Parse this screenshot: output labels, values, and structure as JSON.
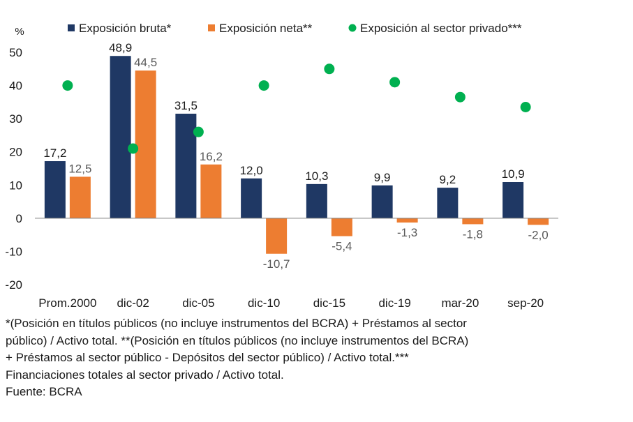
{
  "chart_data": {
    "type": "bar",
    "title": "",
    "ylabel": "%",
    "xlabel": "",
    "ylim": [
      -20,
      50
    ],
    "yticks": [
      -20,
      -10,
      0,
      10,
      20,
      30,
      40,
      50
    ],
    "categories": [
      "Prom.2000",
      "dic-02",
      "dic-05",
      "dic-10",
      "dic-15",
      "dic-19",
      "mar-20",
      "sep-20"
    ],
    "series": [
      {
        "name": "Exposición bruta*",
        "kind": "bar",
        "color": "#1f3864",
        "values": [
          17.2,
          48.9,
          31.5,
          12.0,
          10.3,
          9.9,
          9.2,
          10.9
        ],
        "labels": [
          "17,2",
          "48,9",
          "31,5",
          "12,0",
          "10,3",
          "9,9",
          "9,2",
          "10,9"
        ]
      },
      {
        "name": "Exposición neta**",
        "kind": "bar",
        "color": "#ed7d31",
        "values": [
          12.5,
          44.5,
          16.2,
          -10.7,
          -5.4,
          -1.3,
          -1.8,
          -2.0
        ],
        "labels": [
          "12,5",
          "44,5",
          "16,2",
          "-10,7",
          "-5,4",
          "-1,3",
          "-1,8",
          "-2,0"
        ]
      },
      {
        "name": "Exposición al sector privado***",
        "kind": "dot",
        "color": "#00b050",
        "values": [
          40.0,
          21.0,
          26.0,
          40.0,
          45.0,
          41.0,
          36.5,
          33.5
        ]
      }
    ],
    "legend_position": "top"
  },
  "footnote": {
    "line1": "*(Posición en títulos públicos (no incluye instrumentos del BCRA) + Préstamos al sector",
    "line2": "público) / Activo total. **(Posición en títulos públicos (no incluye instrumentos del BCRA)",
    "line3": "+ Préstamos al sector público - Depósitos del sector público) / Activo total.***",
    "line4": "Financiaciones totales al sector privado / Activo total.",
    "source": "Fuente: BCRA"
  }
}
